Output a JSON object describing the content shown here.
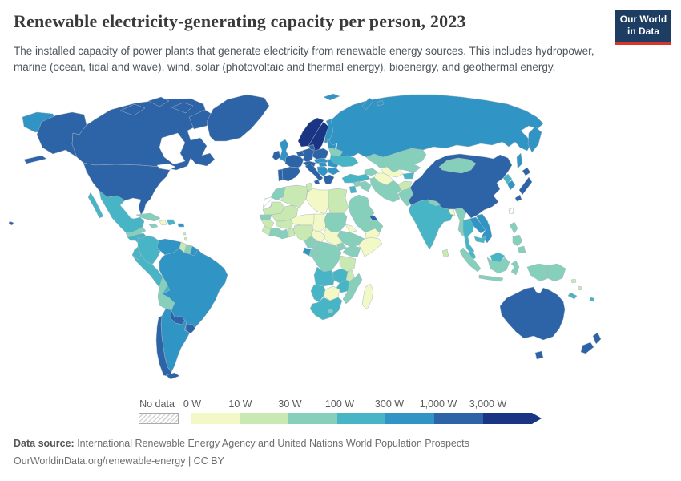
{
  "header": {
    "title": "Renewable electricity-generating capacity per person, 2023",
    "subtitle": "The installed capacity of power plants that generate electricity from renewable energy sources. This includes hydropower, marine (ocean, tidal and wave), wind, solar (photovoltaic and thermal energy), bioenergy, and geothermal energy.",
    "logo": {
      "line1": "Our World",
      "line2": "in Data",
      "bg_color": "#1d3d63",
      "accent_color": "#d8352b"
    }
  },
  "legend": {
    "no_data_label": "No data",
    "ticks": [
      "0 W",
      "10 W",
      "30 W",
      "100 W",
      "300 W",
      "1,000 W",
      "3,000 W"
    ],
    "bin_colors": [
      "#f3f9c6",
      "#c9e9b3",
      "#86cfbb",
      "#47b5c5",
      "#3094c5",
      "#2d63a7",
      "#1b3585"
    ],
    "nodata_hatch_line_color": "#d4d4d4",
    "country_border_color": "#a9b6be"
  },
  "footer": {
    "source_label": "Data source:",
    "source_text": " International Renewable Energy Agency and United Nations World Population Prospects",
    "link_text": "OurWorldinData.org/renewable-energy",
    "license_suffix": " | CC BY"
  },
  "chart_data": {
    "type": "heatmap",
    "subtype": "world-choropleth",
    "title": "Renewable electricity-generating capacity per person, 2023",
    "unit": "watts per person",
    "legend_position": "bottom",
    "bins": [
      {
        "range": "0-10 W",
        "color": "#f3f9c6"
      },
      {
        "range": "10-30 W",
        "color": "#c9e9b3"
      },
      {
        "range": "30-100 W",
        "color": "#86cfbb"
      },
      {
        "range": "100-300 W",
        "color": "#47b5c5"
      },
      {
        "range": "300-1,000 W",
        "color": "#3094c5"
      },
      {
        "range": "1,000-3,000 W",
        "color": "#2d63a7"
      },
      {
        "range": "3,000 W and over",
        "color": "#1b3585"
      },
      {
        "range": "No data",
        "color": "hatched"
      }
    ],
    "country_bins": {
      "chukotka-russia": 4,
      "usa": 5,
      "canada": 5,
      "greenland": 5,
      "mexico": 3,
      "guatemala-honduras": 2,
      "nicaragua-panama": 3,
      "cuba": 2,
      "jamaica": 2,
      "haiti": 0,
      "dominican-republic": 3,
      "puerto-rico": 4,
      "lesser-antilles": 1,
      "colombia": 3,
      "venezuela": 4,
      "guyana": 1,
      "suriname": 2,
      "french-guiana": 4,
      "ecuador": 3,
      "peru": 3,
      "brazil": 4,
      "bolivia": 2,
      "paraguay": 5,
      "uruguay": 5,
      "argentina": 4,
      "chile": 5,
      "iceland": 6,
      "norway": 6,
      "sweden": 6,
      "finland": 4,
      "denmark": 5,
      "uk": 4,
      "ireland": 5,
      "portugal": 5,
      "spain": 5,
      "france": 5,
      "belgium-netherlands": 5,
      "germany": 5,
      "poland": 5,
      "czech-slovakia": 4,
      "switzerland-austria": 5,
      "italy": 5,
      "hungary": 4,
      "balkans": 4,
      "romania": 4,
      "bulgaria": 4,
      "greece": 5,
      "baltics": 4,
      "belarus": 2,
      "ukraine": 3,
      "russia": 4,
      "svalbard": 4,
      "kazakhstan": 2,
      "uzbekistan": 0,
      "turkmenistan": 0,
      "kyrgyzstan": 2,
      "tajikistan": 3,
      "caucasus": 2,
      "turkey": 3,
      "syria": 2,
      "jordan-israel": 3,
      "iraq": 2,
      "iran": 2,
      "afghanistan": 1,
      "pakistan": 2,
      "saudi-arabia": 2,
      "yemen": 0,
      "oman": 2,
      "uae": 5,
      "morocco": 2,
      "algeria": 1,
      "tunisia": 1,
      "libya": 0,
      "egypt": 1,
      "western-sahara": "nodata",
      "mauritania": 1,
      "mali": 1,
      "senegal": 2,
      "guinea": 1,
      "sierra-leone-liberia": 1,
      "ivory-coast": 2,
      "ghana": 2,
      "togo-benin": 1,
      "burkina-faso": 1,
      "niger": 0,
      "nigeria": 1,
      "chad": 0,
      "sudan": 2,
      "eritrea": 0,
      "ethiopia": 2,
      "somalia": 0,
      "south-sudan": 0,
      "central-african-republic": 0,
      "cameroon": 2,
      "gabon": 4,
      "congo": 2,
      "dr-congo": 2,
      "uganda": 2,
      "kenya": 2,
      "tanzania": 1,
      "angola": 3,
      "zambia": 3,
      "malawi": 1,
      "mozambique": 2,
      "zimbabwe": 3,
      "botswana": 0,
      "namibia": 3,
      "south-africa": 3,
      "lesotho": 2,
      "madagascar": 0,
      "india": 3,
      "nepal": 2,
      "bangladesh": 0,
      "sri-lanka": 1,
      "myanmar": 2,
      "thailand": 3,
      "laos": 4,
      "vietnam": 4,
      "cambodia": 3,
      "malaysia": 3,
      "indonesia": 2,
      "papua-new-guinea": 2,
      "philippines": 2,
      "taiwan": "nodata",
      "china": 5,
      "mongolia": 2,
      "north-korea": 3,
      "south-korea": 4,
      "japan": 5,
      "australia": 5,
      "new-zealand": 5,
      "new-caledonia": 3,
      "fiji": 3,
      "solomon-islands": 1,
      "vanuatu": 1
    }
  }
}
